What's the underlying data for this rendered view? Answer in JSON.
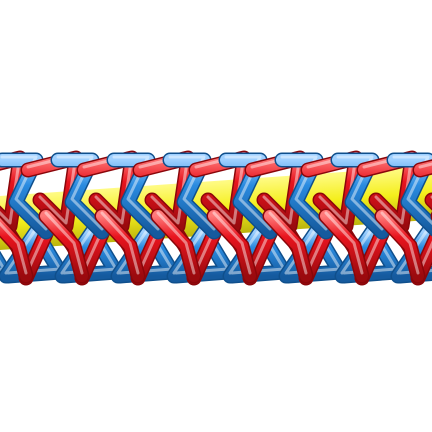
{
  "image": {
    "subject": "helix-rod-structure",
    "background_color": "#ffffff",
    "colors": {
      "red": "#e8141e",
      "red_dark": "#a80a10",
      "red_light": "#ff6a6a",
      "blue": "#2a8be0",
      "blue_dark": "#1560a8",
      "blue_light": "#8cc6ff",
      "yellow": "#f4ee10",
      "yellow_dark": "#c8c000"
    },
    "repeat_units": 8
  }
}
